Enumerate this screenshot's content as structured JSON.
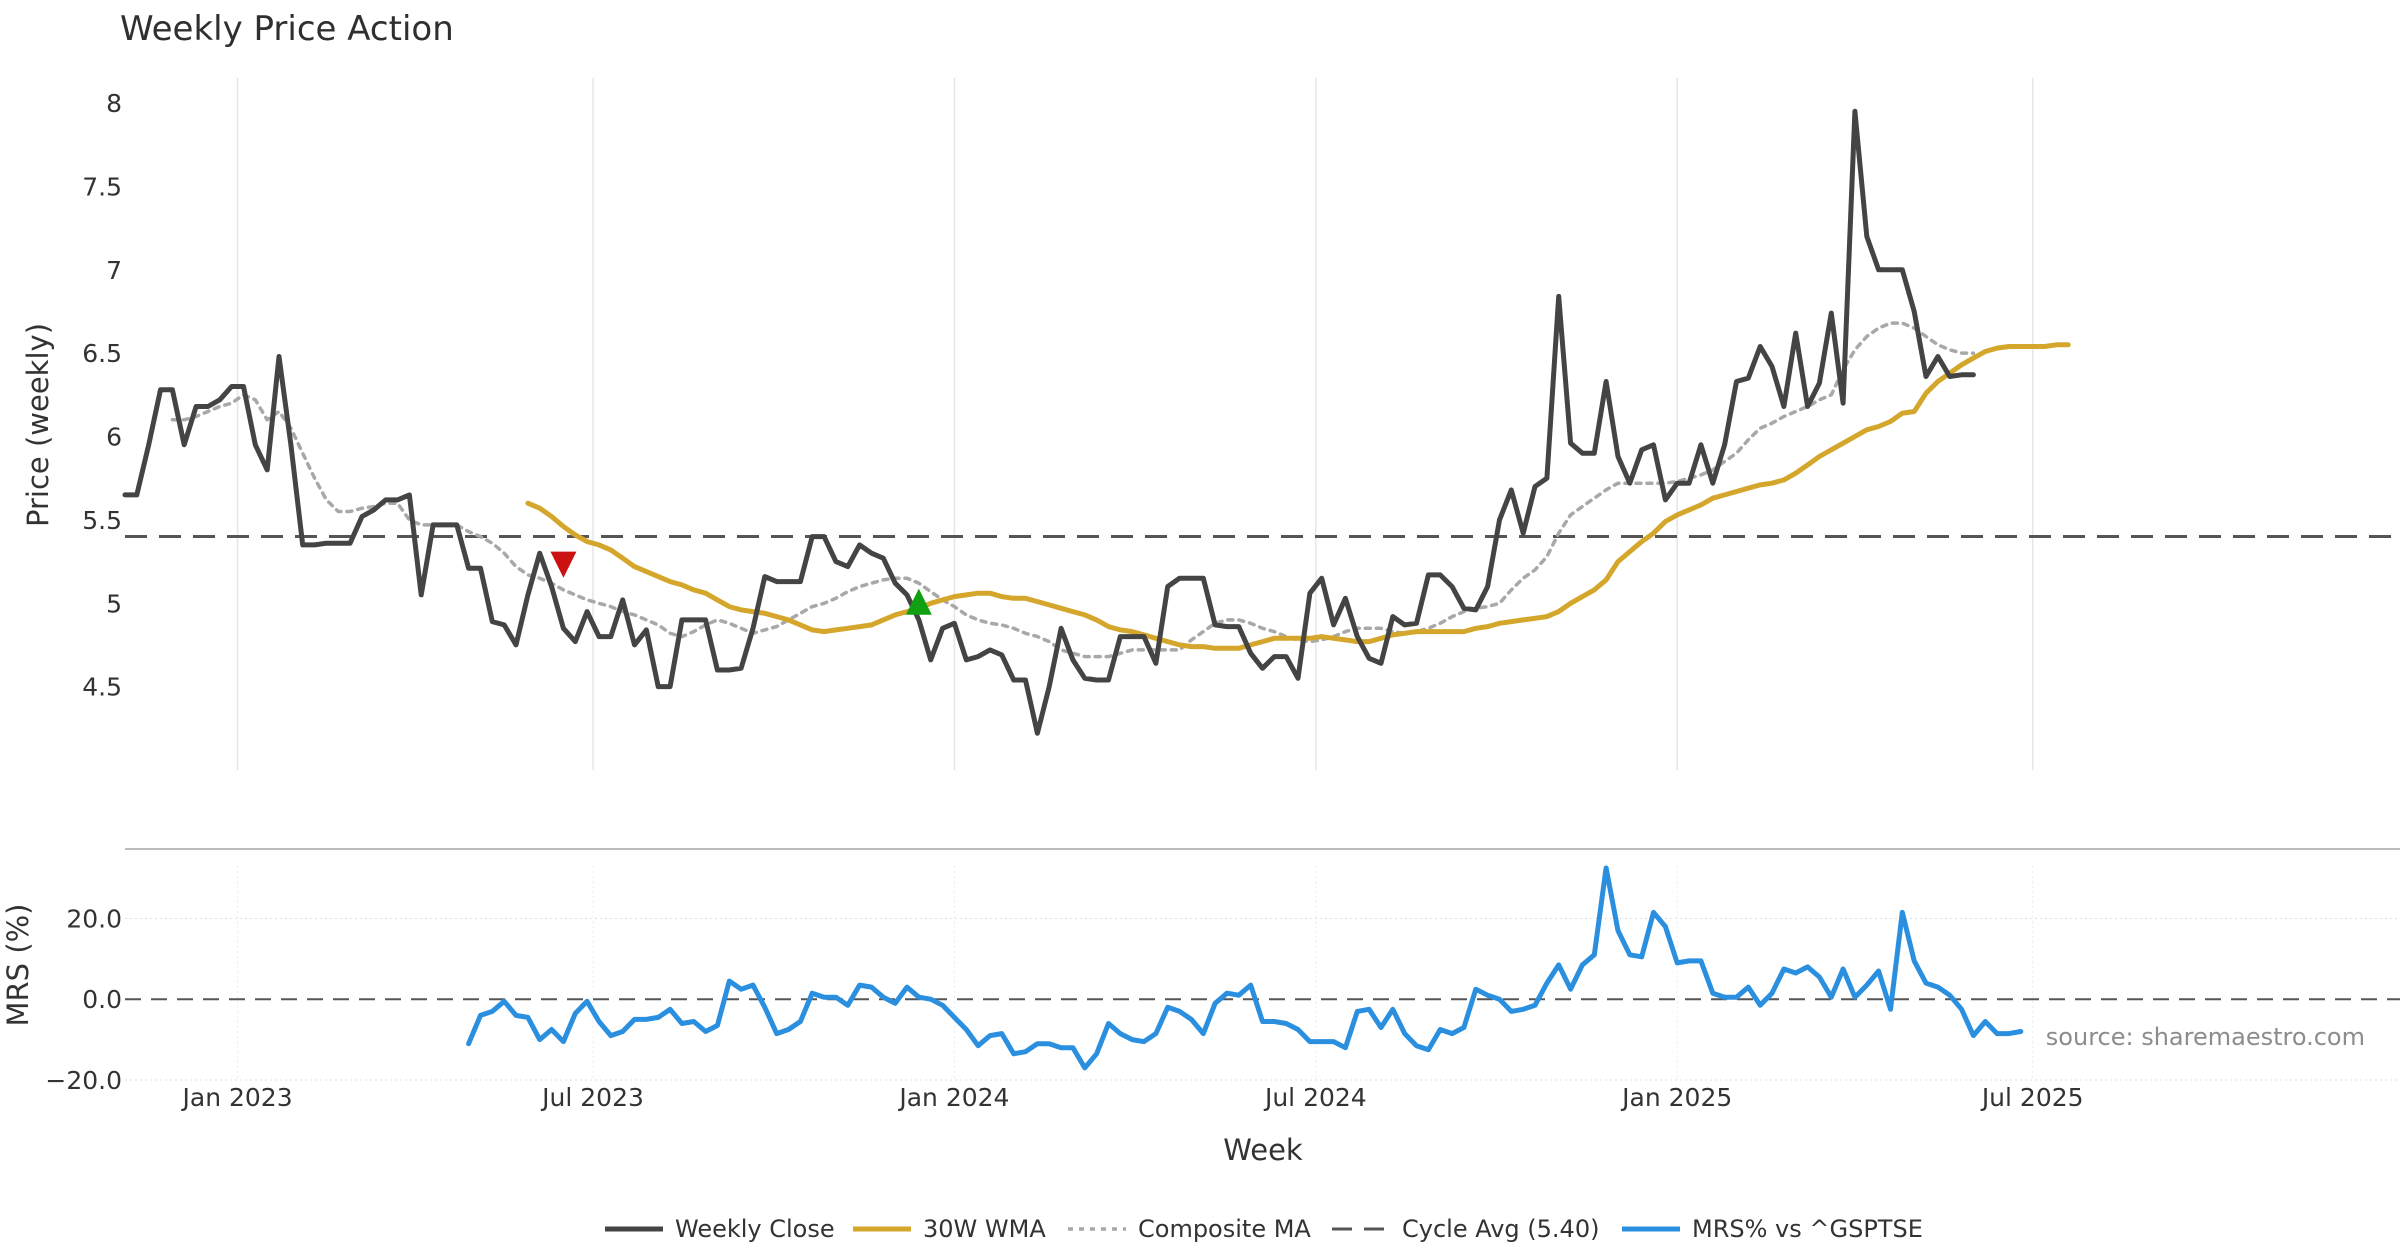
{
  "chart_data": {
    "title": "Weekly Price Action",
    "source_note": "source: sharemaestro.com",
    "xlabel": "Week",
    "x_ticks": [
      "Jan 2023",
      "Jul 2023",
      "Jan 2024",
      "Jul 2024",
      "Jan 2025",
      "Jul 2025"
    ],
    "x_range_weeks": [
      0,
      192
    ],
    "x_tick_weeks": [
      9.5,
      39.5,
      70,
      100.5,
      131,
      161
    ],
    "price_panel": {
      "type": "line",
      "ylabel": "Price (weekly)",
      "ylim": [
        4.0,
        8.15
      ],
      "y_ticks": [
        "4.5",
        "5",
        "5.5",
        "6",
        "6.5",
        "7",
        "7.5",
        "8"
      ],
      "cycle_avg": 5.4,
      "series": [
        {
          "name": "Weekly Close",
          "color": "#444444",
          "x_start": 0,
          "values": [
            5.65,
            5.65,
            5.95,
            6.28,
            6.28,
            5.95,
            6.18,
            6.18,
            6.22,
            6.3,
            6.3,
            5.95,
            5.8,
            6.48,
            5.95,
            5.35,
            5.35,
            5.36,
            5.36,
            5.36,
            5.52,
            5.56,
            5.62,
            5.62,
            5.65,
            5.05,
            5.47,
            5.47,
            5.47,
            5.21,
            5.21,
            4.89,
            4.87,
            4.75,
            5.05,
            5.3,
            5.1,
            4.85,
            4.77,
            4.95,
            4.8,
            4.8,
            5.02,
            4.75,
            4.84,
            4.5,
            4.5,
            4.9,
            4.9,
            4.9,
            4.6,
            4.6,
            4.61,
            4.85,
            5.16,
            5.13,
            5.13,
            5.13,
            5.4,
            5.4,
            5.25,
            5.22,
            5.35,
            5.3,
            5.27,
            5.12,
            5.05,
            4.9,
            4.66,
            4.85,
            4.88,
            4.66,
            4.68,
            4.72,
            4.69,
            4.54,
            4.54,
            4.22,
            4.5,
            4.85,
            4.66,
            4.55,
            4.54,
            4.54,
            4.8,
            4.8,
            4.8,
            4.64,
            5.1,
            5.15,
            5.15,
            5.15,
            4.87,
            4.86,
            4.86,
            4.7,
            4.61,
            4.68,
            4.68,
            4.55,
            5.06,
            5.15,
            4.87,
            5.03,
            4.8,
            4.67,
            4.64,
            4.92,
            4.87,
            4.88,
            5.17,
            5.17,
            5.1,
            4.97,
            4.96,
            5.1,
            5.5,
            5.68,
            5.42,
            5.7,
            5.75,
            6.84,
            5.96,
            5.9,
            5.9,
            6.33,
            5.88,
            5.72,
            5.92,
            5.95,
            5.62,
            5.72,
            5.72,
            5.95,
            5.72,
            5.95,
            6.33,
            6.35,
            6.54,
            6.42,
            6.18,
            6.62,
            6.18,
            6.32,
            6.74,
            6.2,
            7.95,
            7.2,
            7.0,
            7.0,
            7.0,
            6.75,
            6.36,
            6.48,
            6.36,
            6.37,
            6.37
          ]
        },
        {
          "name": "30W WMA",
          "color": "#d4a72c",
          "x_start": 34,
          "values": [
            5.6,
            5.57,
            5.52,
            5.46,
            5.41,
            5.37,
            5.35,
            5.32,
            5.27,
            5.22,
            5.19,
            5.16,
            5.13,
            5.11,
            5.08,
            5.06,
            5.02,
            4.98,
            4.96,
            4.95,
            4.94,
            4.92,
            4.9,
            4.87,
            4.84,
            4.83,
            4.84,
            4.85,
            4.86,
            4.87,
            4.9,
            4.93,
            4.95,
            4.97,
            5.0,
            5.02,
            5.04,
            5.05,
            5.06,
            5.06,
            5.04,
            5.03,
            5.03,
            5.01,
            4.99,
            4.97,
            4.95,
            4.93,
            4.9,
            4.86,
            4.84,
            4.83,
            4.81,
            4.79,
            4.77,
            4.75,
            4.74,
            4.74,
            4.73,
            4.73,
            4.73,
            4.75,
            4.77,
            4.79,
            4.79,
            4.79,
            4.79,
            4.8,
            4.79,
            4.78,
            4.77,
            4.77,
            4.79,
            4.81,
            4.82,
            4.83,
            4.83,
            4.83,
            4.83,
            4.83,
            4.85,
            4.86,
            4.88,
            4.89,
            4.9,
            4.91,
            4.92,
            4.95,
            5.0,
            5.04,
            5.08,
            5.14,
            5.25,
            5.31,
            5.37,
            5.42,
            5.49,
            5.53,
            5.56,
            5.59,
            5.63,
            5.65,
            5.67,
            5.69,
            5.71,
            5.72,
            5.74,
            5.78,
            5.83,
            5.88,
            5.92,
            5.96,
            6.0,
            6.04,
            6.06,
            6.09,
            6.14,
            6.15,
            6.26,
            6.33,
            6.38,
            6.43,
            6.47,
            6.51,
            6.53,
            6.54,
            6.54,
            6.54,
            6.54,
            6.55,
            6.55
          ]
        },
        {
          "name": "Composite MA",
          "color": "#a8a8a8",
          "x_start": 4,
          "values": [
            6.1,
            6.1,
            6.12,
            6.15,
            6.18,
            6.2,
            6.25,
            6.22,
            6.1,
            6.15,
            6.05,
            5.9,
            5.75,
            5.62,
            5.55,
            5.55,
            5.57,
            5.58,
            5.6,
            5.6,
            5.5,
            5.47,
            5.47,
            5.47,
            5.47,
            5.43,
            5.4,
            5.36,
            5.3,
            5.22,
            5.17,
            5.15,
            5.12,
            5.08,
            5.05,
            5.02,
            5.0,
            4.98,
            4.95,
            4.93,
            4.9,
            4.87,
            4.82,
            4.8,
            4.83,
            4.87,
            4.9,
            4.88,
            4.85,
            4.82,
            4.84,
            4.86,
            4.9,
            4.94,
            4.98,
            5.0,
            5.03,
            5.07,
            5.1,
            5.12,
            5.14,
            5.15,
            5.15,
            5.12,
            5.07,
            5.02,
            4.98,
            4.93,
            4.9,
            4.88,
            4.87,
            4.85,
            4.82,
            4.8,
            4.77,
            4.72,
            4.7,
            4.68,
            4.68,
            4.68,
            4.7,
            4.72,
            4.72,
            4.72,
            4.72,
            4.72,
            4.78,
            4.83,
            4.88,
            4.9,
            4.9,
            4.88,
            4.85,
            4.83,
            4.8,
            4.78,
            4.77,
            4.78,
            4.8,
            4.83,
            4.85,
            4.85,
            4.85,
            4.83,
            4.82,
            4.83,
            4.85,
            4.88,
            4.92,
            4.95,
            4.97,
            4.98,
            5.0,
            5.08,
            5.15,
            5.2,
            5.28,
            5.42,
            5.53,
            5.58,
            5.63,
            5.68,
            5.72,
            5.72,
            5.72,
            5.72,
            5.72,
            5.73,
            5.75,
            5.77,
            5.8,
            5.85,
            5.9,
            5.98,
            6.05,
            6.08,
            6.12,
            6.15,
            6.18,
            6.22,
            6.25,
            6.4,
            6.52,
            6.6,
            6.65,
            6.68,
            6.68,
            6.65,
            6.6,
            6.55,
            6.52,
            6.5,
            6.5
          ]
        }
      ],
      "markers": [
        {
          "type": "sell",
          "symbol": "▼",
          "color": "#cc1111",
          "week": 37,
          "price": 5.25
        },
        {
          "type": "buy",
          "symbol": "▲",
          "color": "#11a011",
          "week": 67,
          "price": 5.03
        }
      ]
    },
    "mrs_panel": {
      "type": "line",
      "ylabel": "MRS (%)",
      "ylim": [
        -20,
        33
      ],
      "y_ticks": [
        "−20.0",
        "0.0",
        "20.0"
      ],
      "series": [
        {
          "name": "MRS% vs ^GSPTSE",
          "color": "#2b8fe0",
          "x_start": 29,
          "values": [
            -11,
            -4,
            -3,
            -0.5,
            -4,
            -4.5,
            -10,
            -7.5,
            -10.5,
            -3.5,
            -0.5,
            -5.5,
            -9,
            -8,
            -5,
            -5,
            -4.5,
            -2.5,
            -6,
            -5.5,
            -8,
            -6.5,
            4.5,
            2.5,
            3.5,
            -2,
            -8.5,
            -7.5,
            -5.5,
            1.5,
            0.5,
            0.5,
            -1.5,
            3.5,
            3,
            0.5,
            -1,
            3,
            0.5,
            0,
            -1.5,
            -4.5,
            -7.5,
            -11.5,
            -9,
            -8.5,
            -13.5,
            -13,
            -11,
            -11,
            -12,
            -12,
            -17,
            -13.5,
            -6,
            -8.5,
            -10,
            -10.5,
            -8.5,
            -2,
            -3,
            -5,
            -8.5,
            -1,
            1.5,
            1,
            3.5,
            -5.5,
            -5.5,
            -6,
            -7.5,
            -10.5,
            -10.5,
            -10.5,
            -12,
            -3,
            -2.5,
            -7,
            -2.5,
            -8.5,
            -11.5,
            -12.5,
            -7.5,
            -8.5,
            -7,
            2.5,
            1,
            0,
            -3,
            -2.5,
            -1.5,
            4,
            8.5,
            2.5,
            8.5,
            11,
            32.5,
            17,
            11,
            10.5,
            21.5,
            18,
            9,
            9.5,
            9.5,
            1.5,
            0.5,
            0.5,
            3,
            -1.5,
            1.5,
            7.5,
            6.5,
            8,
            5.5,
            0.5,
            7.5,
            0.5,
            3.5,
            7,
            -2.5,
            21.5,
            9.5,
            4,
            3,
            1,
            -2.5,
            -9,
            -5.5,
            -8.5,
            -8.5,
            -8
          ]
        }
      ]
    },
    "legend": [
      {
        "label": "Weekly Close",
        "color": "#444444",
        "style": "solid"
      },
      {
        "label": "30W WMA",
        "color": "#d4a72c",
        "style": "solid"
      },
      {
        "label": "Composite MA",
        "color": "#a8a8a8",
        "style": "dotted"
      },
      {
        "label": "Cycle Avg (5.40)",
        "color": "#555555",
        "style": "dashed"
      },
      {
        "label": "MRS% vs ^GSPTSE",
        "color": "#2b8fe0",
        "style": "solid"
      }
    ]
  }
}
